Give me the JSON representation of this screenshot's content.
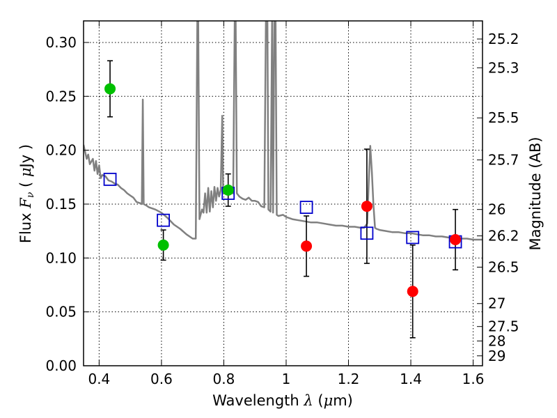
{
  "chart_data": {
    "type": "scatter",
    "xlabel": "Wavelength  λ (μm)",
    "ylabel": "Flux  F_ν  ( μJy )",
    "y2label": "Magnitude (AB)",
    "xlim": [
      0.35,
      1.63
    ],
    "ylim": [
      0.0,
      0.32
    ],
    "grid": true,
    "x_ticks": [
      {
        "value": 0.4,
        "label": "0.4"
      },
      {
        "value": 0.6,
        "label": "0.6"
      },
      {
        "value": 0.8,
        "label": "0.8"
      },
      {
        "value": 1.0,
        "label": "1"
      },
      {
        "value": 1.2,
        "label": "1.2"
      },
      {
        "value": 1.4,
        "label": "1.4"
      },
      {
        "value": 1.6,
        "label": "1.6"
      }
    ],
    "y_ticks": [
      {
        "value": 0.0,
        "label": "0.00"
      },
      {
        "value": 0.05,
        "label": "0.05"
      },
      {
        "value": 0.1,
        "label": "0.10"
      },
      {
        "value": 0.15,
        "label": "0.15"
      },
      {
        "value": 0.2,
        "label": "0.20"
      },
      {
        "value": 0.25,
        "label": "0.25"
      },
      {
        "value": 0.3,
        "label": "0.30"
      }
    ],
    "y2_ticks": [
      {
        "label": "25.2",
        "flux": 0.3032
      },
      {
        "label": "25.3",
        "flux": 0.2765
      },
      {
        "label": "25.5",
        "flux": 0.23
      },
      {
        "label": "25.7",
        "flux": 0.191
      },
      {
        "label": "26",
        "flux": 0.145
      },
      {
        "label": "26.2",
        "flux": 0.1205
      },
      {
        "label": "26.5",
        "flux": 0.0915
      },
      {
        "label": "27",
        "flux": 0.0577
      },
      {
        "label": "27.5",
        "flux": 0.0364
      },
      {
        "label": "28",
        "flux": 0.023
      },
      {
        "label": "29",
        "flux": 0.0092
      }
    ],
    "series": [
      {
        "marker": "circle",
        "color": "#00c000",
        "points": [
          {
            "x": 0.435,
            "y": 0.257,
            "err": 0.026
          },
          {
            "x": 0.606,
            "y": 0.112,
            "err": 0.014
          },
          {
            "x": 0.814,
            "y": 0.163,
            "err": 0.015
          }
        ]
      },
      {
        "marker": "circle",
        "color": "#ff0000",
        "points": [
          {
            "x": 1.065,
            "y": 0.111,
            "err": 0.028
          },
          {
            "x": 1.259,
            "y": 0.148,
            "err": 0.053
          },
          {
            "x": 1.406,
            "y": 0.069,
            "err": 0.043
          },
          {
            "x": 1.543,
            "y": 0.117,
            "err": 0.028
          }
        ]
      },
      {
        "marker": "open-square",
        "color": "#0000cc",
        "points": [
          {
            "x": 0.435,
            "y": 0.173
          },
          {
            "x": 0.606,
            "y": 0.135
          },
          {
            "x": 0.814,
            "y": 0.16
          },
          {
            "x": 1.065,
            "y": 0.147
          },
          {
            "x": 1.259,
            "y": 0.123
          },
          {
            "x": 1.406,
            "y": 0.119
          },
          {
            "x": 1.543,
            "y": 0.115
          }
        ]
      }
    ],
    "model_spectrum": {
      "color": "#808080",
      "points": [
        [
          0.35,
          0.205
        ],
        [
          0.36,
          0.192
        ],
        [
          0.365,
          0.196
        ],
        [
          0.37,
          0.187
        ],
        [
          0.38,
          0.192
        ],
        [
          0.385,
          0.181
        ],
        [
          0.39,
          0.19
        ],
        [
          0.395,
          0.178
        ],
        [
          0.4,
          0.186
        ],
        [
          0.405,
          0.174
        ],
        [
          0.41,
          0.177
        ],
        [
          0.42,
          0.176
        ],
        [
          0.43,
          0.172
        ],
        [
          0.44,
          0.171
        ],
        [
          0.45,
          0.169
        ],
        [
          0.46,
          0.168
        ],
        [
          0.47,
          0.165
        ],
        [
          0.48,
          0.163
        ],
        [
          0.49,
          0.16
        ],
        [
          0.5,
          0.158
        ],
        [
          0.51,
          0.156
        ],
        [
          0.52,
          0.152
        ],
        [
          0.53,
          0.151
        ],
        [
          0.537,
          0.15
        ],
        [
          0.54,
          0.247
        ],
        [
          0.543,
          0.15
        ],
        [
          0.55,
          0.149
        ],
        [
          0.56,
          0.147
        ],
        [
          0.58,
          0.145
        ],
        [
          0.6,
          0.142
        ],
        [
          0.62,
          0.137
        ],
        [
          0.64,
          0.131
        ],
        [
          0.66,
          0.127
        ],
        [
          0.68,
          0.122
        ],
        [
          0.7,
          0.118
        ],
        [
          0.71,
          0.118
        ],
        [
          0.715,
          0.32
        ],
        [
          0.718,
          0.32
        ],
        [
          0.722,
          0.136
        ],
        [
          0.73,
          0.145
        ],
        [
          0.735,
          0.142
        ],
        [
          0.74,
          0.16
        ],
        [
          0.745,
          0.142
        ],
        [
          0.75,
          0.165
        ],
        [
          0.755,
          0.143
        ],
        [
          0.76,
          0.162
        ],
        [
          0.765,
          0.147
        ],
        [
          0.77,
          0.166
        ],
        [
          0.775,
          0.153
        ],
        [
          0.78,
          0.165
        ],
        [
          0.785,
          0.157
        ],
        [
          0.79,
          0.163
        ],
        [
          0.795,
          0.232
        ],
        [
          0.798,
          0.16
        ],
        [
          0.805,
          0.161
        ],
        [
          0.81,
          0.159
        ],
        [
          0.82,
          0.16
        ],
        [
          0.83,
          0.16
        ],
        [
          0.835,
          0.32
        ],
        [
          0.838,
          0.32
        ],
        [
          0.842,
          0.16
        ],
        [
          0.85,
          0.157
        ],
        [
          0.86,
          0.155
        ],
        [
          0.87,
          0.154
        ],
        [
          0.88,
          0.156
        ],
        [
          0.89,
          0.153
        ],
        [
          0.9,
          0.153
        ],
        [
          0.91,
          0.152
        ],
        [
          0.92,
          0.148
        ],
        [
          0.93,
          0.147
        ],
        [
          0.935,
          0.32
        ],
        [
          0.94,
          0.32
        ],
        [
          0.943,
          0.145
        ],
        [
          0.95,
          0.143
        ],
        [
          0.955,
          0.32
        ],
        [
          0.958,
          0.142
        ],
        [
          0.962,
          0.32
        ],
        [
          0.966,
          0.32
        ],
        [
          0.97,
          0.14
        ],
        [
          0.975,
          0.139
        ],
        [
          0.99,
          0.14
        ],
        [
          1.0,
          0.138
        ],
        [
          1.02,
          0.136
        ],
        [
          1.04,
          0.135
        ],
        [
          1.06,
          0.134
        ],
        [
          1.08,
          0.133
        ],
        [
          1.1,
          0.133
        ],
        [
          1.12,
          0.132
        ],
        [
          1.14,
          0.131
        ],
        [
          1.16,
          0.13
        ],
        [
          1.18,
          0.13
        ],
        [
          1.2,
          0.129
        ],
        [
          1.22,
          0.129
        ],
        [
          1.24,
          0.128
        ],
        [
          1.25,
          0.128
        ],
        [
          1.26,
          0.132
        ],
        [
          1.265,
          0.17
        ],
        [
          1.27,
          0.204
        ],
        [
          1.275,
          0.18
        ],
        [
          1.28,
          0.15
        ],
        [
          1.285,
          0.128
        ],
        [
          1.29,
          0.127
        ],
        [
          1.3,
          0.126
        ],
        [
          1.32,
          0.125
        ],
        [
          1.34,
          0.124
        ],
        [
          1.36,
          0.124
        ],
        [
          1.38,
          0.123
        ],
        [
          1.4,
          0.123
        ],
        [
          1.42,
          0.122
        ],
        [
          1.44,
          0.121
        ],
        [
          1.46,
          0.121
        ],
        [
          1.48,
          0.12
        ],
        [
          1.5,
          0.12
        ],
        [
          1.52,
          0.119
        ],
        [
          1.54,
          0.119
        ],
        [
          1.56,
          0.118
        ],
        [
          1.58,
          0.118
        ],
        [
          1.6,
          0.117
        ],
        [
          1.63,
          0.117
        ]
      ]
    }
  }
}
